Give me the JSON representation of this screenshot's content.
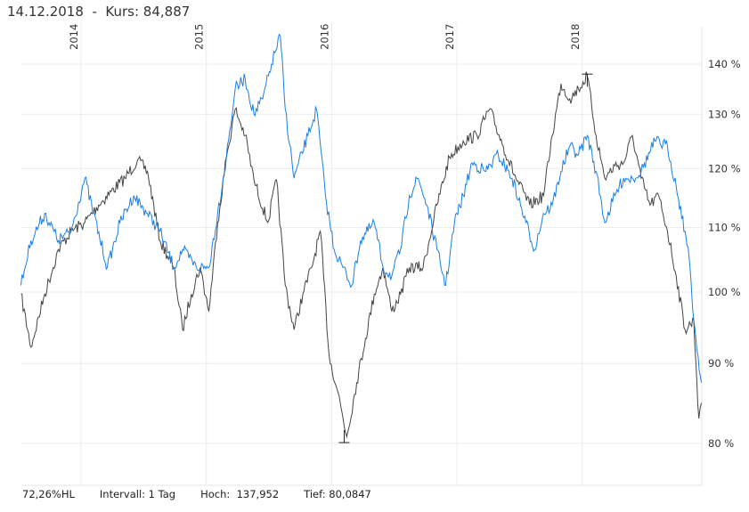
{
  "header": {
    "date": "14.12.2018",
    "separator": "-",
    "price": "Kurs: 84,887"
  },
  "footer": {
    "hl": "72,26%HL",
    "interval": "Intervall: 1 Tag",
    "high": "Hoch:  137,952",
    "low": "Tief: 80,0847"
  },
  "colors": {
    "series_dark": "#444444",
    "series_blue": "#1a7fe6",
    "grid": "#ececec"
  },
  "chart_data": {
    "type": "line",
    "yscale": "log",
    "ylim": [
      77,
      147
    ],
    "xlim": [
      2013.52,
      2018.96
    ],
    "x_ticks": [
      {
        "v": 2014,
        "label": "2014"
      },
      {
        "v": 2015,
        "label": "2015"
      },
      {
        "v": 2016,
        "label": "2016"
      },
      {
        "v": 2017,
        "label": "2017"
      },
      {
        "v": 2018,
        "label": "2018"
      }
    ],
    "y_ticks": [
      {
        "v": 140,
        "label": "140 %"
      },
      {
        "v": 130,
        "label": "130 %"
      },
      {
        "v": 120,
        "label": "120 %"
      },
      {
        "v": 110,
        "label": "110 %"
      },
      {
        "v": 100,
        "label": "100 %"
      },
      {
        "v": 90,
        "label": "90 %"
      },
      {
        "v": 80,
        "label": "80 %"
      }
    ],
    "markers": [
      {
        "name": "high",
        "x": 2018.04,
        "y": 137.952
      },
      {
        "name": "low",
        "x": 2016.1,
        "y": 80.0847
      }
    ],
    "series": [
      {
        "name": "dark",
        "points": [
          [
            2013.52,
            99.7
          ],
          [
            2013.6,
            92.2
          ],
          [
            2013.71,
            99.7
          ],
          [
            2013.82,
            106.5
          ],
          [
            2013.92,
            109.4
          ],
          [
            2014.03,
            110.8
          ],
          [
            2014.14,
            113.7
          ],
          [
            2014.24,
            116
          ],
          [
            2014.35,
            118.3
          ],
          [
            2014.45,
            121.5
          ],
          [
            2014.53,
            119.5
          ],
          [
            2014.63,
            107.9
          ],
          [
            2014.74,
            103.7
          ],
          [
            2014.81,
            94.6
          ],
          [
            2014.88,
            99.7
          ],
          [
            2014.95,
            103.7
          ],
          [
            2015.02,
            97.2
          ],
          [
            2015.09,
            110.8
          ],
          [
            2015.16,
            122
          ],
          [
            2015.23,
            131
          ],
          [
            2015.31,
            126
          ],
          [
            2015.38,
            118
          ],
          [
            2015.49,
            110.8
          ],
          [
            2015.56,
            118
          ],
          [
            2015.63,
            101
          ],
          [
            2015.7,
            94.6
          ],
          [
            2015.77,
            99.7
          ],
          [
            2015.84,
            103.7
          ],
          [
            2015.91,
            109.4
          ],
          [
            2015.98,
            91
          ],
          [
            2016.05,
            86.3
          ],
          [
            2016.12,
            80.8
          ],
          [
            2016.2,
            87.5
          ],
          [
            2016.27,
            93.4
          ],
          [
            2016.34,
            99.7
          ],
          [
            2016.41,
            103.7
          ],
          [
            2016.48,
            97.2
          ],
          [
            2016.55,
            99.7
          ],
          [
            2016.62,
            103.7
          ],
          [
            2016.73,
            103.7
          ],
          [
            2016.84,
            113.7
          ],
          [
            2016.94,
            122
          ],
          [
            2017.05,
            125
          ],
          [
            2017.16,
            126
          ],
          [
            2017.26,
            131
          ],
          [
            2017.37,
            124
          ],
          [
            2017.47,
            118.3
          ],
          [
            2017.58,
            113.7
          ],
          [
            2017.69,
            115.3
          ],
          [
            2017.76,
            126
          ],
          [
            2017.83,
            136
          ],
          [
            2017.9,
            133
          ],
          [
            2017.97,
            135
          ],
          [
            2018.04,
            137.6
          ],
          [
            2018.11,
            126
          ],
          [
            2018.18,
            118.3
          ],
          [
            2018.26,
            120.5
          ],
          [
            2018.33,
            121
          ],
          [
            2018.4,
            126
          ],
          [
            2018.47,
            118.3
          ],
          [
            2018.54,
            113.7
          ],
          [
            2018.61,
            115.3
          ],
          [
            2018.68,
            109.4
          ],
          [
            2018.75,
            102.4
          ],
          [
            2018.82,
            94.6
          ],
          [
            2018.89,
            95.9
          ],
          [
            2018.93,
            83
          ],
          [
            2018.95,
            84.9
          ]
        ]
      },
      {
        "name": "blue",
        "points": [
          [
            2013.52,
            101
          ],
          [
            2013.6,
            107.9
          ],
          [
            2013.71,
            112.3
          ],
          [
            2013.82,
            107.9
          ],
          [
            2013.92,
            109.4
          ],
          [
            2014.03,
            118.3
          ],
          [
            2014.1,
            112.3
          ],
          [
            2014.21,
            103.7
          ],
          [
            2014.31,
            110.8
          ],
          [
            2014.42,
            115.3
          ],
          [
            2014.53,
            112.3
          ],
          [
            2014.63,
            109.4
          ],
          [
            2014.74,
            103.7
          ],
          [
            2014.81,
            106.5
          ],
          [
            2014.92,
            103.7
          ],
          [
            2015.02,
            103.7
          ],
          [
            2015.09,
            112.3
          ],
          [
            2015.16,
            122
          ],
          [
            2015.23,
            135
          ],
          [
            2015.31,
            137
          ],
          [
            2015.38,
            130
          ],
          [
            2015.45,
            133
          ],
          [
            2015.52,
            140
          ],
          [
            2015.59,
            146
          ],
          [
            2015.63,
            131
          ],
          [
            2015.7,
            118.3
          ],
          [
            2015.81,
            126
          ],
          [
            2015.88,
            131
          ],
          [
            2015.95,
            115.3
          ],
          [
            2016.02,
            106.5
          ],
          [
            2016.09,
            103.7
          ],
          [
            2016.16,
            101
          ],
          [
            2016.23,
            107.9
          ],
          [
            2016.34,
            110.8
          ],
          [
            2016.41,
            103.7
          ],
          [
            2016.48,
            102.4
          ],
          [
            2016.55,
            106.5
          ],
          [
            2016.62,
            115.3
          ],
          [
            2016.69,
            118.3
          ],
          [
            2016.76,
            113.7
          ],
          [
            2016.84,
            106.5
          ],
          [
            2016.91,
            101
          ],
          [
            2016.98,
            110.8
          ],
          [
            2017.05,
            115.3
          ],
          [
            2017.12,
            121
          ],
          [
            2017.23,
            119.5
          ],
          [
            2017.33,
            122.5
          ],
          [
            2017.44,
            118.3
          ],
          [
            2017.55,
            110.8
          ],
          [
            2017.62,
            106.5
          ],
          [
            2017.69,
            112.3
          ],
          [
            2017.76,
            113.7
          ],
          [
            2017.83,
            119.5
          ],
          [
            2017.9,
            124
          ],
          [
            2017.97,
            122.5
          ],
          [
            2018.04,
            126
          ],
          [
            2018.11,
            119.5
          ],
          [
            2018.18,
            110.8
          ],
          [
            2018.26,
            115.3
          ],
          [
            2018.33,
            118.3
          ],
          [
            2018.4,
            118.3
          ],
          [
            2018.47,
            119.5
          ],
          [
            2018.58,
            125
          ],
          [
            2018.68,
            124
          ],
          [
            2018.75,
            116.8
          ],
          [
            2018.82,
            109.4
          ],
          [
            2018.86,
            103.7
          ],
          [
            2018.89,
            95.9
          ],
          [
            2018.95,
            87.5
          ]
        ]
      }
    ]
  }
}
